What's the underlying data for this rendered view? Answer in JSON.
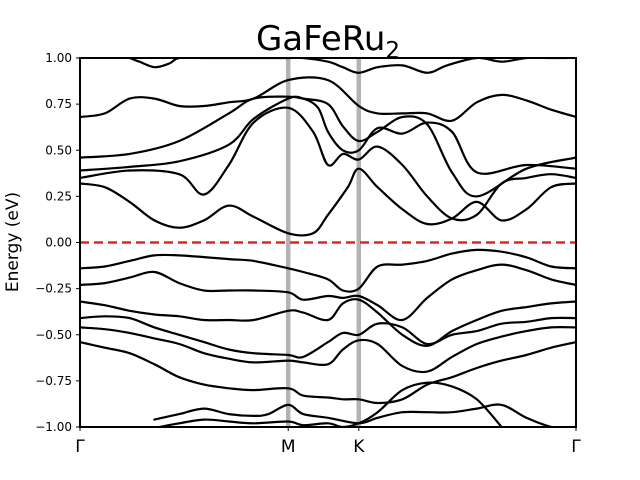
{
  "chart_data": {
    "type": "line",
    "title": "GaFeRu",
    "title_subscript": "2",
    "xlabel": "",
    "ylabel": "Energy (eV)",
    "ylim": [
      -1.0,
      1.0
    ],
    "xlim": [
      0,
      1
    ],
    "yticks": [
      -1.0,
      -0.75,
      -0.5,
      -0.25,
      0.0,
      0.25,
      0.5,
      0.75,
      1.0
    ],
    "ytick_labels": [
      "−1.00",
      "−0.75",
      "−0.50",
      "−0.25",
      "0.00",
      "0.25",
      "0.50",
      "0.75",
      "1.00"
    ],
    "kpoints": [
      {
        "label": "Γ",
        "x": 0.0
      },
      {
        "label": "M",
        "x": 0.4198
      },
      {
        "label": "K",
        "x": 0.5621
      },
      {
        "label": "Γ",
        "x": 1.0
      }
    ],
    "fermi_level": 0.0,
    "colors": {
      "bands": "#000000",
      "fermi": "#e8221c",
      "kpath_lines": "#b3b3b3"
    },
    "grid": false,
    "series": [
      {
        "x": [
          0.0,
          0.05,
          0.1,
          0.15,
          0.2,
          0.25,
          0.3,
          0.35,
          0.4198,
          0.47,
          0.5,
          0.54,
          0.5621,
          0.6,
          0.65,
          0.7,
          0.75,
          0.8,
          0.85,
          0.9,
          0.95,
          1.0
        ],
        "values": [
          0.32,
          0.3,
          0.22,
          0.12,
          0.08,
          0.12,
          0.2,
          0.14,
          0.05,
          0.05,
          0.15,
          0.3,
          0.4,
          0.3,
          0.18,
          0.1,
          0.13,
          0.22,
          0.12,
          0.18,
          0.3,
          0.32
        ]
      },
      {
        "x": [
          0.0,
          0.1,
          0.2,
          0.25,
          0.3,
          0.35,
          0.4198,
          0.47,
          0.5,
          0.53,
          0.5621,
          0.6,
          0.65,
          0.7,
          0.75,
          0.8,
          0.85,
          0.9,
          0.95,
          1.0
        ],
        "values": [
          0.35,
          0.39,
          0.37,
          0.26,
          0.42,
          0.65,
          0.73,
          0.6,
          0.42,
          0.48,
          0.45,
          0.52,
          0.42,
          0.25,
          0.13,
          0.15,
          0.32,
          0.35,
          0.37,
          0.35
        ]
      },
      {
        "x": [
          0.0,
          0.1,
          0.2,
          0.3,
          0.35,
          0.4198,
          0.45,
          0.48,
          0.5,
          0.53,
          0.5621,
          0.6,
          0.65,
          0.7,
          0.75,
          0.8,
          0.9,
          1.0
        ],
        "values": [
          0.39,
          0.41,
          0.44,
          0.53,
          0.67,
          0.78,
          0.78,
          0.73,
          0.6,
          0.5,
          0.5,
          0.62,
          0.59,
          0.65,
          0.6,
          0.38,
          0.42,
          0.4
        ]
      },
      {
        "x": [
          0.0,
          0.1,
          0.2,
          0.3,
          0.35,
          0.4198,
          0.45,
          0.5,
          0.53,
          0.5621,
          0.6,
          0.65,
          0.7,
          0.75,
          0.8,
          0.9,
          1.0
        ],
        "values": [
          0.46,
          0.48,
          0.55,
          0.7,
          0.78,
          0.79,
          0.78,
          0.75,
          0.63,
          0.55,
          0.6,
          0.68,
          0.64,
          0.38,
          0.25,
          0.4,
          0.46
        ]
      },
      {
        "x": [
          0.0,
          0.05,
          0.1,
          0.15,
          0.2,
          0.25,
          0.3,
          0.35,
          0.4198,
          0.5,
          0.5621,
          0.6,
          0.65,
          0.7,
          0.75,
          0.8,
          0.85,
          0.9,
          0.95,
          1.0
        ],
        "values": [
          0.68,
          0.7,
          0.78,
          0.78,
          0.74,
          0.74,
          0.76,
          0.78,
          0.88,
          0.88,
          0.74,
          0.7,
          0.7,
          0.7,
          0.66,
          0.76,
          0.8,
          0.77,
          0.72,
          0.68
        ]
      },
      {
        "x": [
          0.1,
          0.12,
          0.15,
          0.18,
          0.2,
          0.25,
          0.3,
          0.35,
          0.4198,
          0.45,
          0.5,
          0.53,
          0.5621,
          0.6,
          0.65,
          0.7,
          0.74,
          0.8,
          0.85,
          0.9,
          0.95,
          0.98
        ],
        "values": [
          1.0,
          0.98,
          0.95,
          0.97,
          1.0,
          1.0,
          1.0,
          1.0,
          1.0,
          1.0,
          0.98,
          0.95,
          0.92,
          0.95,
          0.96,
          0.92,
          0.96,
          1.0,
          0.98,
          1.0,
          1.0,
          1.0
        ]
      },
      {
        "x": [
          0.0,
          0.05,
          0.1,
          0.15,
          0.2,
          0.3,
          0.35,
          0.4198,
          0.45,
          0.5,
          0.53,
          0.5621,
          0.6,
          0.65,
          0.7,
          0.75,
          0.8,
          0.85,
          0.9,
          0.95,
          1.0
        ],
        "values": [
          -0.14,
          -0.13,
          -0.1,
          -0.07,
          -0.07,
          -0.09,
          -0.1,
          -0.14,
          -0.16,
          -0.2,
          -0.26,
          -0.25,
          -0.13,
          -0.12,
          -0.1,
          -0.06,
          -0.04,
          -0.05,
          -0.08,
          -0.13,
          -0.14
        ]
      },
      {
        "x": [
          0.0,
          0.05,
          0.1,
          0.15,
          0.2,
          0.25,
          0.3,
          0.35,
          0.4198,
          0.45,
          0.5,
          0.53,
          0.5621,
          0.6,
          0.65,
          0.7,
          0.75,
          0.8,
          0.85,
          0.9,
          0.95,
          1.0
        ],
        "values": [
          -0.23,
          -0.22,
          -0.19,
          -0.16,
          -0.22,
          -0.26,
          -0.26,
          -0.26,
          -0.27,
          -0.31,
          -0.29,
          -0.3,
          -0.29,
          -0.34,
          -0.42,
          -0.3,
          -0.2,
          -0.15,
          -0.12,
          -0.15,
          -0.2,
          -0.23
        ]
      },
      {
        "x": [
          0.0,
          0.05,
          0.1,
          0.15,
          0.2,
          0.25,
          0.3,
          0.35,
          0.4198,
          0.45,
          0.5,
          0.53,
          0.5621,
          0.6,
          0.65,
          0.7,
          0.75,
          0.8,
          0.85,
          0.9,
          0.95,
          1.0
        ],
        "values": [
          -0.32,
          -0.34,
          -0.37,
          -0.39,
          -0.4,
          -0.42,
          -0.42,
          -0.42,
          -0.37,
          -0.38,
          -0.42,
          -0.33,
          -0.31,
          -0.38,
          -0.5,
          -0.56,
          -0.48,
          -0.42,
          -0.37,
          -0.35,
          -0.33,
          -0.32
        ]
      },
      {
        "x": [
          0.0,
          0.05,
          0.1,
          0.15,
          0.2,
          0.25,
          0.3,
          0.35,
          0.4198,
          0.45,
          0.5,
          0.53,
          0.5621,
          0.6,
          0.65,
          0.7,
          0.75,
          0.8,
          0.85,
          0.9,
          0.95,
          1.0
        ],
        "values": [
          -0.41,
          -0.4,
          -0.41,
          -0.46,
          -0.5,
          -0.54,
          -0.58,
          -0.6,
          -0.61,
          -0.62,
          -0.54,
          -0.49,
          -0.5,
          -0.44,
          -0.46,
          -0.55,
          -0.5,
          -0.48,
          -0.44,
          -0.43,
          -0.41,
          -0.41
        ]
      },
      {
        "x": [
          0.0,
          0.05,
          0.1,
          0.15,
          0.2,
          0.25,
          0.3,
          0.35,
          0.4198,
          0.45,
          0.5,
          0.53,
          0.5621,
          0.6,
          0.65,
          0.7,
          0.75,
          0.8,
          0.85,
          0.9,
          0.95,
          1.0
        ],
        "values": [
          -0.46,
          -0.47,
          -0.49,
          -0.52,
          -0.55,
          -0.6,
          -0.63,
          -0.65,
          -0.64,
          -0.65,
          -0.66,
          -0.58,
          -0.53,
          -0.55,
          -0.67,
          -0.7,
          -0.62,
          -0.55,
          -0.51,
          -0.48,
          -0.46,
          -0.46
        ]
      },
      {
        "x": [
          0.0,
          0.05,
          0.1,
          0.15,
          0.2,
          0.25,
          0.3,
          0.35,
          0.4198,
          0.45,
          0.5,
          0.53,
          0.5621,
          0.6,
          0.65,
          0.7,
          0.75,
          0.8,
          0.85,
          0.9,
          0.95,
          1.0
        ],
        "values": [
          -0.54,
          -0.57,
          -0.6,
          -0.66,
          -0.73,
          -0.77,
          -0.79,
          -0.8,
          -0.79,
          -0.83,
          -0.84,
          -0.85,
          -0.85,
          -0.87,
          -0.85,
          -0.77,
          -0.73,
          -0.68,
          -0.64,
          -0.61,
          -0.57,
          -0.54
        ]
      },
      {
        "x": [
          0.15,
          0.2,
          0.25,
          0.3,
          0.35,
          0.38,
          0.4198,
          0.45,
          0.5,
          0.5621,
          0.6,
          0.65,
          0.7,
          0.75,
          0.8,
          0.85,
          0.9,
          0.95,
          0.97
        ],
        "values": [
          -0.96,
          -0.93,
          -0.9,
          -0.93,
          -0.94,
          -0.93,
          -0.88,
          -0.93,
          -0.95,
          -0.98,
          -0.95,
          -0.92,
          -0.92,
          -0.92,
          -0.9,
          -0.88,
          -0.95,
          -1.0,
          -1.0
        ]
      },
      {
        "x": [
          0.16,
          0.2,
          0.25,
          0.3,
          0.35,
          0.4198,
          0.45,
          0.5,
          0.53,
          0.5621,
          0.6,
          0.65,
          0.7,
          0.75,
          0.8,
          0.85
        ],
        "values": [
          -1.0,
          -0.98,
          -0.96,
          -0.97,
          -0.98,
          -0.97,
          -0.99,
          -0.98,
          -1.0,
          -0.98,
          -0.92,
          -0.8,
          -0.76,
          -0.78,
          -0.85,
          -1.0
        ]
      }
    ]
  }
}
